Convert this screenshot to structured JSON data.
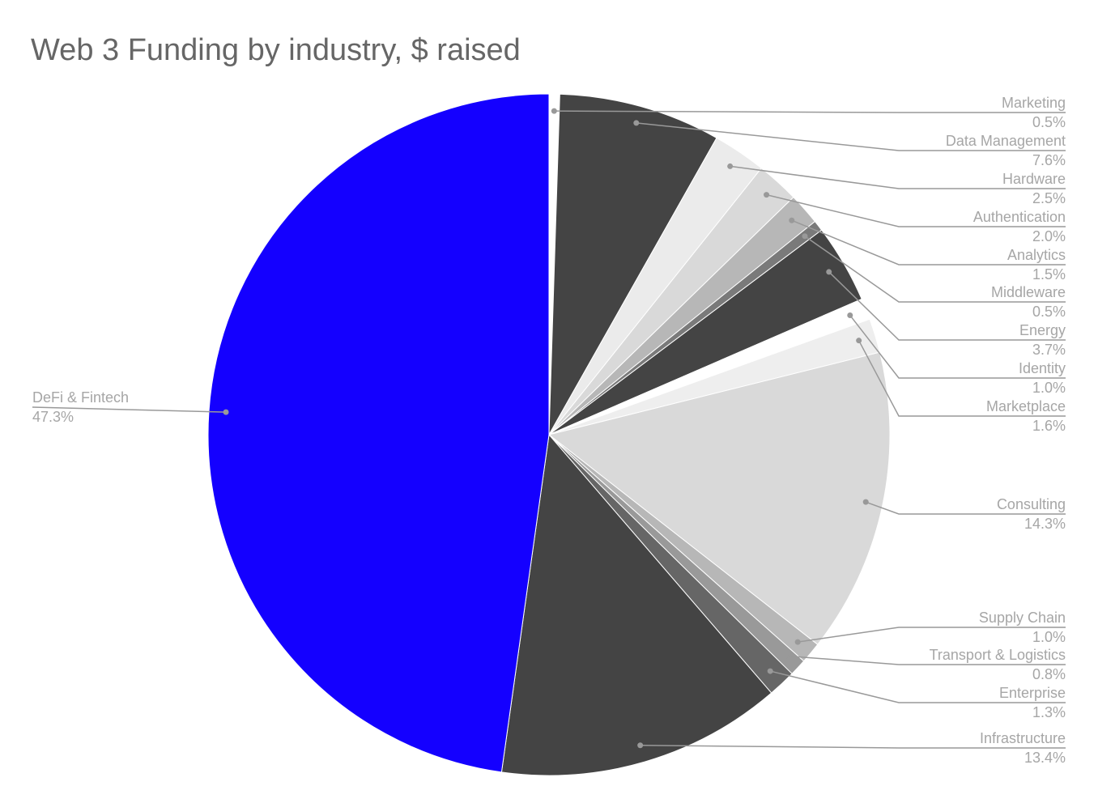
{
  "chart_data": {
    "type": "pie",
    "title": "Web 3 Funding by industry, $ raised",
    "categories": [
      "Marketing",
      "Data Management",
      "Hardware",
      "Authentication",
      "Analytics",
      "Middleware",
      "Energy",
      "Identity",
      "Marketplace",
      "Consulting",
      "Supply Chain",
      "Transport & Logistics",
      "Enterprise",
      "Infrastructure",
      "DeFi & Fintech"
    ],
    "values": [
      0.5,
      7.6,
      2.5,
      2.0,
      1.5,
      0.5,
      3.7,
      1.0,
      1.6,
      14.3,
      1.0,
      0.8,
      1.3,
      13.4,
      47.3
    ],
    "value_labels": [
      "0.5%",
      "7.6%",
      "2.5%",
      "2.0%",
      "1.5%",
      "0.5%",
      "3.7%",
      "1.0%",
      "1.6%",
      "14.3%",
      "1.0%",
      "0.8%",
      "1.3%",
      "13.4%",
      "47.3%"
    ],
    "colors": [
      "#ffffff",
      "#444444",
      "#ebebeb",
      "#d9d9d9",
      "#b7b7b7",
      "#7a7a7a",
      "#444444",
      "#ffffff",
      "#eeeeee",
      "#d9d9d9",
      "#b7b7b7",
      "#999999",
      "#666666",
      "#444444",
      "#1400ff"
    ]
  }
}
